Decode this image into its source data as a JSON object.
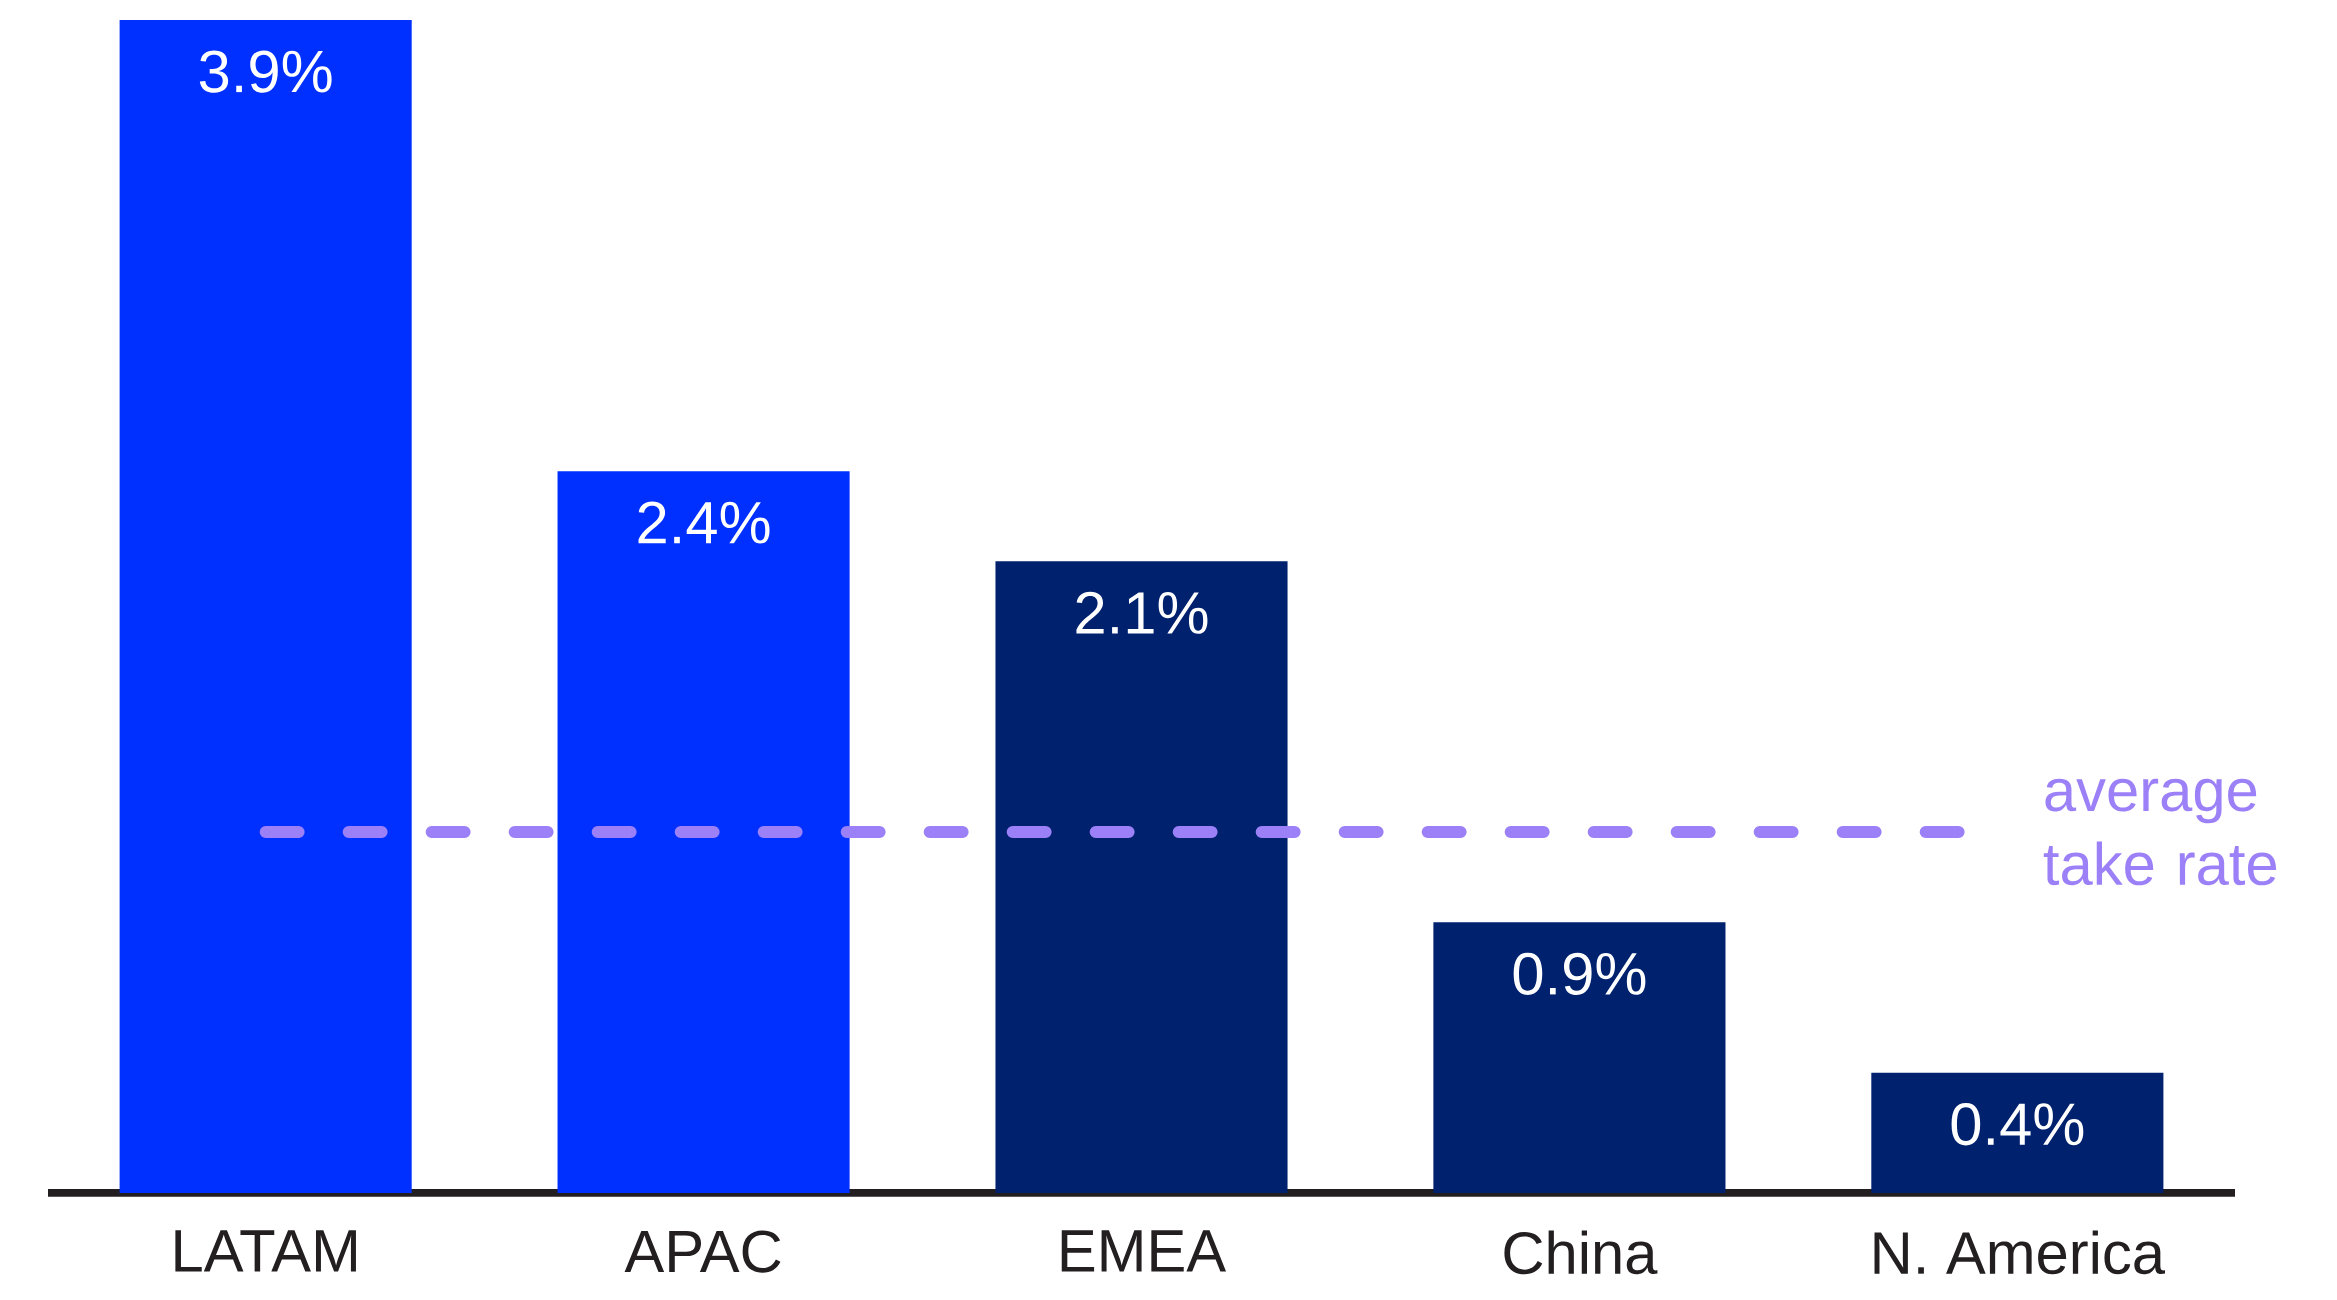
{
  "chart_data": {
    "type": "bar",
    "categories": [
      "LATAM",
      "APAC",
      "EMEA",
      "China",
      "N. America"
    ],
    "values": [
      3.9,
      2.4,
      2.1,
      0.9,
      0.4
    ],
    "colors": [
      "#0030ff",
      "#0030ff",
      "#00216e",
      "#00216e",
      "#00216e"
    ],
    "value_labels": [
      "3.9%",
      "2.4%",
      "2.1%",
      "0.9%",
      "0.4%"
    ],
    "ref_lines": [
      {
        "axis": "y",
        "value": 1.2,
        "label": "average take rate",
        "color": "#9b80f7",
        "line_style": "dashed"
      }
    ],
    "grid": false
  }
}
